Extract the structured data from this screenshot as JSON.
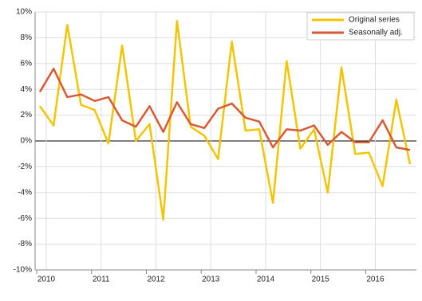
{
  "chart_data": {
    "type": "line",
    "categories": [
      "2010",
      null,
      null,
      null,
      "2011",
      null,
      null,
      null,
      "2012",
      null,
      null,
      null,
      "2013",
      null,
      null,
      null,
      "2014",
      null,
      null,
      null,
      "2015",
      null,
      null,
      null,
      "2016",
      null,
      null,
      null
    ],
    "series": [
      {
        "name": "Original series",
        "color": "#f2c500",
        "values": [
          2.7,
          1.2,
          9.0,
          2.8,
          2.4,
          -0.2,
          7.4,
          0.0,
          1.3,
          -6.1,
          9.3,
          1.1,
          0.4,
          -1.4,
          7.7,
          0.8,
          0.9,
          -4.8,
          6.2,
          -0.6,
          0.9,
          -4.0,
          5.7,
          -1.0,
          -0.9,
          -3.5,
          3.2,
          -1.8
        ]
      },
      {
        "name": "Seasonally adj.",
        "color": "#d65a33",
        "values": [
          3.8,
          5.6,
          3.4,
          3.6,
          3.1,
          3.4,
          1.6,
          1.1,
          2.7,
          0.7,
          3.0,
          1.3,
          1.0,
          2.5,
          2.9,
          1.8,
          1.5,
          -0.5,
          0.9,
          0.8,
          1.2,
          -0.3,
          0.7,
          -0.1,
          -0.1,
          1.6,
          -0.5,
          -0.7
        ]
      }
    ],
    "ylim": [
      -10,
      10
    ],
    "yticks": [
      {
        "value": -10,
        "label": "-10%"
      },
      {
        "value": -8,
        "label": "-8%"
      },
      {
        "value": -6,
        "label": "-6%"
      },
      {
        "value": -4,
        "label": "-4%"
      },
      {
        "value": -2,
        "label": "-2%"
      },
      {
        "value": 0,
        "label": "0%"
      },
      {
        "value": 2,
        "label": "2%"
      },
      {
        "value": 4,
        "label": "4%"
      },
      {
        "value": 6,
        "label": "6%"
      },
      {
        "value": 8,
        "label": "8%"
      },
      {
        "value": 10,
        "label": "10%"
      }
    ],
    "grid": true,
    "legend": "top-right"
  }
}
